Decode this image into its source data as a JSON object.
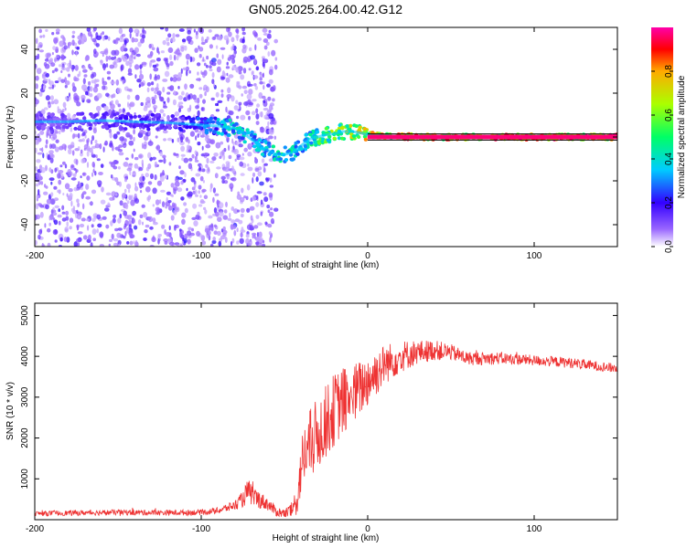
{
  "figure_title": "GN05.2025.264.00.42.G12",
  "colors": {
    "snr_line": "#ee3333",
    "axis": "#000000",
    "background": "#ffffff",
    "trace_line": "#000000"
  },
  "chart_data": [
    {
      "type": "heatmap",
      "title": "GN05.2025.264.00.42.G12",
      "xlabel": "Height of straight line (km)",
      "ylabel": "Frequency (Hz)",
      "xlim": [
        -200,
        150
      ],
      "ylim": [
        -50,
        50
      ],
      "xticks": [
        -200,
        -100,
        0,
        100
      ],
      "yticks": [
        -40,
        -20,
        0,
        20,
        40
      ],
      "xtick_labels": [
        "-200",
        "-100",
        "0",
        "100"
      ],
      "ytick_labels": [
        "-40",
        "-20",
        "0",
        "20",
        "40"
      ],
      "colorbar": {
        "label": "Normalized spectral amplitude",
        "range": [
          0,
          1
        ],
        "ticks": [
          0,
          0.2,
          0.4,
          0.6,
          0.8
        ],
        "tick_labels": [
          "0.0",
          "0.2",
          "0.4",
          "0.6",
          "0.8"
        ],
        "colormap": "rainbow (violet to magenta)"
      },
      "ridge": {
        "description": "Dominant frequency ridge versus height",
        "x": [
          -200,
          -180,
          -160,
          -140,
          -120,
          -100,
          -90,
          -80,
          -75,
          -70,
          -65,
          -60,
          -55,
          -50,
          -45,
          -40,
          -35,
          -30,
          -25,
          -20,
          -15,
          -10,
          -5,
          0,
          10,
          20,
          30,
          40,
          60,
          80,
          100,
          120,
          150
        ],
        "y": [
          7,
          7,
          7.5,
          7,
          6.5,
          5.5,
          5,
          4,
          2,
          -1,
          -4,
          -6,
          -8,
          -8,
          -7,
          -4,
          -1,
          0,
          1,
          1.5,
          2.5,
          2.5,
          2,
          1,
          0.5,
          0.3,
          0,
          0,
          0,
          0,
          0,
          0,
          0
        ],
        "amplitude": [
          0.15,
          0.15,
          0.18,
          0.22,
          0.18,
          0.3,
          0.4,
          0.5,
          0.45,
          0.45,
          0.4,
          0.45,
          0.5,
          0.55,
          0.5,
          0.45,
          0.5,
          0.6,
          0.65,
          0.7,
          0.75,
          0.75,
          0.8,
          0.85,
          0.9,
          0.92,
          0.95,
          0.96,
          0.98,
          0.98,
          0.99,
          0.99,
          1.0
        ]
      },
      "noise_region_x": [
        -200,
        -55
      ],
      "reference_lines_y": [
        -1,
        1
      ]
    },
    {
      "type": "line",
      "xlabel": "Height of straight line (km)",
      "ylabel": "SNR (10 * v/v)",
      "xlim": [
        -200,
        150
      ],
      "ylim": [
        0,
        5300
      ],
      "xticks": [
        -200,
        -100,
        0,
        100
      ],
      "yticks": [
        1000,
        2000,
        3000,
        4000,
        5000
      ],
      "xtick_labels": [
        "-200",
        "-100",
        "0",
        "100"
      ],
      "ytick_labels": [
        "1000",
        "2000",
        "3000",
        "4000",
        "5000"
      ],
      "series": [
        {
          "name": "SNR",
          "color": "#ee3333",
          "x": [
            -200,
            -150,
            -120,
            -100,
            -90,
            -80,
            -75,
            -72,
            -68,
            -60,
            -55,
            -50,
            -45,
            -42,
            -40,
            -38,
            -35,
            -30,
            -25,
            -20,
            -15,
            -10,
            -5,
            0,
            5,
            10,
            15,
            20,
            30,
            40,
            50,
            60,
            80,
            100,
            120,
            140,
            150
          ],
          "y": [
            150,
            180,
            170,
            180,
            220,
            350,
            500,
            700,
            550,
            380,
            200,
            150,
            250,
            600,
            1300,
            1600,
            1800,
            2100,
            2400,
            2700,
            2900,
            3000,
            3200,
            3400,
            3600,
            3800,
            3900,
            4000,
            4100,
            4150,
            4100,
            3950,
            3950,
            3900,
            3850,
            3750,
            3700
          ],
          "noise_amplitude": [
            60,
            70,
            70,
            70,
            80,
            120,
            200,
            300,
            250,
            160,
            120,
            120,
            200,
            500,
            700,
            800,
            900,
            900,
            900,
            900,
            850,
            800,
            700,
            650,
            600,
            500,
            450,
            400,
            300,
            250,
            200,
            170,
            150,
            130,
            130,
            120,
            120
          ]
        }
      ]
    }
  ]
}
